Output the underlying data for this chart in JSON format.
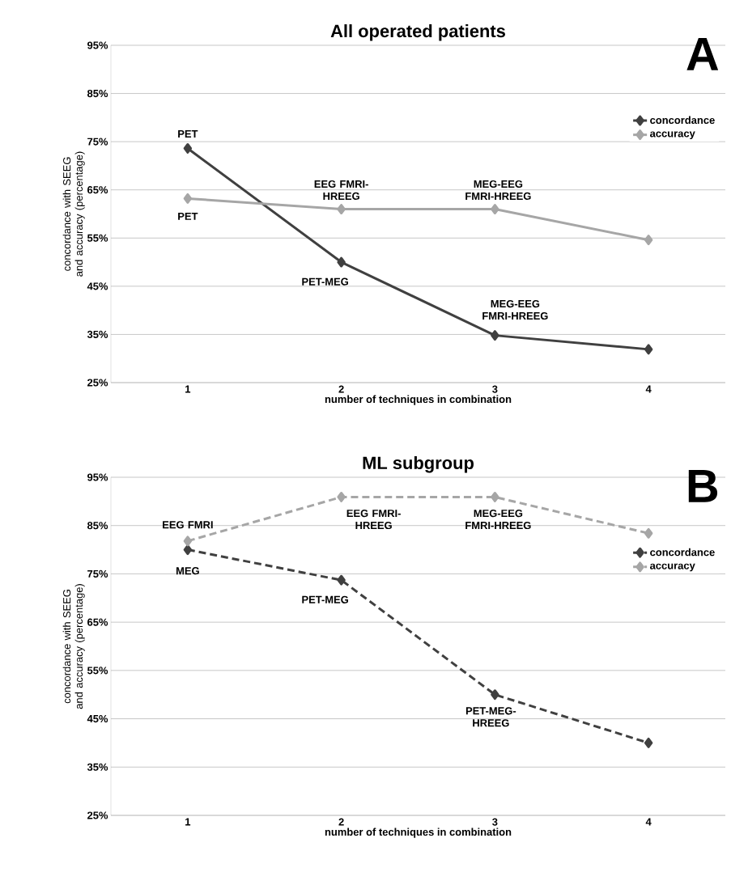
{
  "chart_data": [
    {
      "type": "line",
      "title": "All operated patients",
      "xlabel": "number of techniques in combination",
      "ylabel": "concordance with SEEG and accuracy (percentage)",
      "categories": [
        "1",
        "2",
        "3",
        "4"
      ],
      "series": [
        {
          "name": "concordance",
          "color": "#404040",
          "values": [
            73.6,
            50.0,
            34.8,
            31.9
          ]
        },
        {
          "name": "accuracy",
          "color": "#a6a6a6",
          "values": [
            63.2,
            61.0,
            61.0,
            54.6
          ]
        }
      ],
      "ylim": [
        25,
        95
      ],
      "yticks": [
        {
          "value": 25,
          "label": "25%"
        },
        {
          "value": 35,
          "label": "35%"
        },
        {
          "value": 45,
          "label": "45%"
        },
        {
          "value": 55,
          "label": "55%"
        },
        {
          "value": 65,
          "label": "65%"
        },
        {
          "value": 75,
          "label": "75%"
        },
        {
          "value": 85,
          "label": "85%"
        },
        {
          "value": 95,
          "label": "95%"
        }
      ],
      "grid": "y",
      "legend": "top right",
      "marker": "diamond",
      "line_style": "solid",
      "annotations": [
        "A",
        {
          "text": "PET",
          "x": "1",
          "y": 73.6
        },
        {
          "text": "PET",
          "x": "1",
          "y": 63.2
        },
        {
          "text": "EEG FMRI-HREEG",
          "x": "2",
          "y": 61.0
        },
        {
          "text": "MEG-EEG FMRI-HREEG",
          "x": "3",
          "y": 61.0
        },
        {
          "text": "PET-MEG",
          "x": "2",
          "y": 50.0
        },
        {
          "text": "MEG-EEG FMRI-HREEG",
          "x": "3",
          "y": 34.8
        }
      ]
    },
    {
      "type": "line",
      "title": "ML subgroup",
      "xlabel": "number of techniques in combination",
      "ylabel": "concordance with SEEG and accuracy (percentage)",
      "categories": [
        "1",
        "2",
        "3",
        "4"
      ],
      "series": [
        {
          "name": "concordance",
          "color": "#404040",
          "values": [
            80.0,
            73.7,
            50.0,
            40.0
          ]
        },
        {
          "name": "accuracy",
          "color": "#a6a6a6",
          "values": [
            81.8,
            90.9,
            90.9,
            83.4
          ]
        }
      ],
      "ylim": [
        25,
        95
      ],
      "yticks": [
        {
          "value": 25,
          "label": "25%"
        },
        {
          "value": 35,
          "label": "35%"
        },
        {
          "value": 45,
          "label": "45%"
        },
        {
          "value": 55,
          "label": "55%"
        },
        {
          "value": 65,
          "label": "65%"
        },
        {
          "value": 75,
          "label": "75%"
        },
        {
          "value": 85,
          "label": "85%"
        },
        {
          "value": 95,
          "label": "95%"
        }
      ],
      "grid": "y",
      "legend": "top right",
      "marker": "diamond",
      "line_style": "dashed",
      "annotations": [
        "B",
        {
          "text": "EEG FMRI",
          "x": "1",
          "y": 81.8
        },
        {
          "text": "MEG",
          "x": "1",
          "y": 80.0
        },
        {
          "text": "EEG FMRI-HREEG",
          "x": "2",
          "y": 90.9
        },
        {
          "text": "MEG-EEG FMRI-HREEG",
          "x": "3",
          "y": 90.9
        },
        {
          "text": "PET-MEG",
          "x": "2",
          "y": 73.7
        },
        {
          "text": "PET-MEG-HREEG",
          "x": "3",
          "y": 50.0
        }
      ]
    }
  ]
}
